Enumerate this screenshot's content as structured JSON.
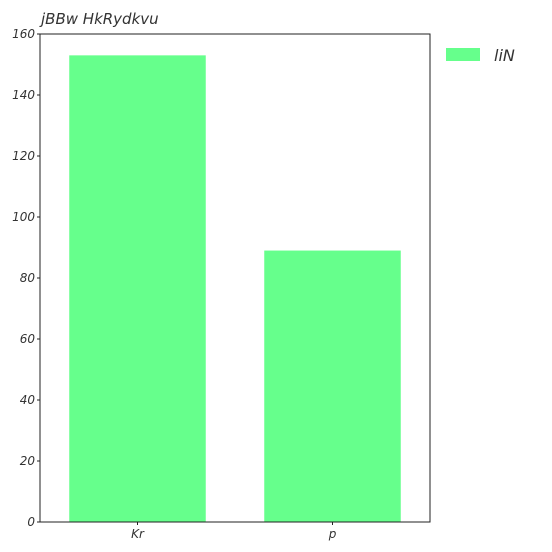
{
  "chart_data": {
    "type": "bar",
    "title": "jBBw HkRydkvu",
    "categories": [
      "Kr",
      "p"
    ],
    "series": [
      {
        "name": "liN",
        "values": [
          153,
          89
        ],
        "color": "#66ff8c"
      }
    ],
    "ylim": [
      0,
      160
    ],
    "yticks": [
      0,
      20,
      40,
      60,
      80,
      100,
      120,
      140,
      160
    ],
    "grid": false,
    "legend": "top-right-outside"
  }
}
